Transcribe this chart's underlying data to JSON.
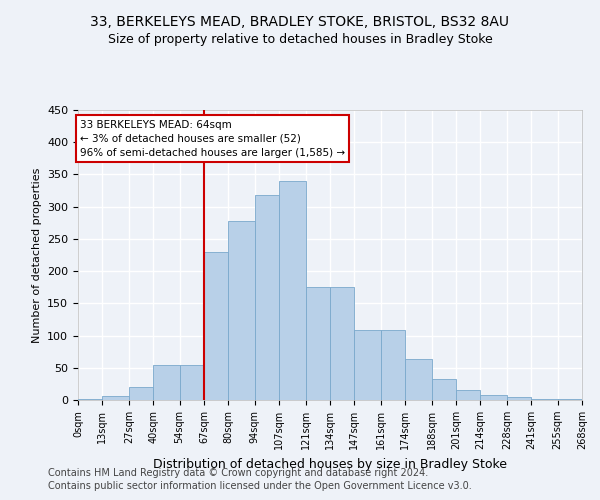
{
  "title1": "33, BERKELEYS MEAD, BRADLEY STOKE, BRISTOL, BS32 8AU",
  "title2": "Size of property relative to detached houses in Bradley Stoke",
  "xlabel": "Distribution of detached houses by size in Bradley Stoke",
  "ylabel": "Number of detached properties",
  "bin_edges": [
    0,
    13,
    27,
    40,
    54,
    67,
    80,
    94,
    107,
    121,
    134,
    147,
    161,
    174,
    188,
    201,
    214,
    228,
    241,
    255,
    268
  ],
  "bin_labels": [
    "0sqm",
    "13sqm",
    "27sqm",
    "40sqm",
    "54sqm",
    "67sqm",
    "80sqm",
    "94sqm",
    "107sqm",
    "121sqm",
    "134sqm",
    "147sqm",
    "161sqm",
    "174sqm",
    "188sqm",
    "201sqm",
    "214sqm",
    "228sqm",
    "241sqm",
    "255sqm",
    "268sqm"
  ],
  "bar_heights": [
    2,
    6,
    20,
    55,
    55,
    230,
    278,
    318,
    340,
    175,
    175,
    109,
    109,
    63,
    32,
    16,
    8,
    4,
    2,
    2
  ],
  "bar_color": "#b8d0e8",
  "bar_edge_color": "#7aa8cc",
  "property_line_x": 67,
  "property_line_color": "#cc0000",
  "annotation_text": "33 BERKELEYS MEAD: 64sqm\n← 3% of detached houses are smaller (52)\n96% of semi-detached houses are larger (1,585) →",
  "annotation_box_color": "#ffffff",
  "annotation_box_edge_color": "#cc0000",
  "ylim": [
    0,
    450
  ],
  "yticks": [
    0,
    50,
    100,
    150,
    200,
    250,
    300,
    350,
    400,
    450
  ],
  "footer1": "Contains HM Land Registry data © Crown copyright and database right 2024.",
  "footer2": "Contains public sector information licensed under the Open Government Licence v3.0.",
  "bg_color": "#eef2f8",
  "grid_color": "#ffffff",
  "title1_fontsize": 10,
  "title2_fontsize": 9,
  "xlabel_fontsize": 9,
  "ylabel_fontsize": 8,
  "footer_fontsize": 7
}
